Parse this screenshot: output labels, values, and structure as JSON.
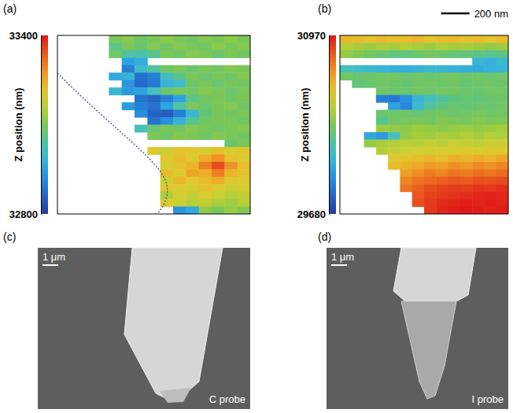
{
  "chart_data": [
    {
      "type": "heatmap",
      "title": "(a)",
      "tick_labels": false,
      "colorbar": {
        "label": "Z position (nm)",
        "range": [
          32800,
          33400
        ],
        "ticks": [
          32800,
          33400
        ]
      },
      "cells": [
        [
          null,
          null,
          null,
          null,
          33100,
          33110,
          33090,
          33100,
          33120,
          33100,
          33090,
          33110,
          33100,
          33120,
          33100
        ],
        [
          null,
          null,
          null,
          null,
          33060,
          33100,
          33080,
          33110,
          33090,
          33110,
          33100,
          33090,
          33120,
          33100,
          33110
        ],
        [
          null,
          null,
          null,
          null,
          33090,
          33040,
          33030,
          33050,
          33100,
          33090,
          33110,
          33100,
          33080,
          33100,
          33090
        ],
        [
          null,
          null,
          null,
          null,
          null,
          32950,
          32970,
          null,
          null,
          null,
          null,
          null,
          null,
          null,
          null
        ],
        [
          null,
          null,
          null,
          null,
          null,
          32900,
          33000,
          33040,
          33090,
          33100,
          33080,
          33100,
          33090,
          33110,
          33100
        ],
        [
          null,
          null,
          null,
          null,
          32960,
          32980,
          32880,
          32900,
          33010,
          33060,
          33100,
          33080,
          33100,
          33090,
          33110
        ],
        [
          null,
          null,
          null,
          null,
          null,
          32930,
          32870,
          32890,
          32980,
          33000,
          33090,
          33100,
          33080,
          33100,
          33090
        ],
        [
          null,
          null,
          null,
          null,
          32990,
          32940,
          32950,
          33020,
          33080,
          33100,
          33090,
          33110,
          33100,
          33080,
          33100
        ],
        [
          null,
          null,
          null,
          null,
          null,
          null,
          32880,
          32860,
          32900,
          32950,
          33060,
          33090,
          33100,
          33090,
          33100
        ],
        [
          null,
          null,
          null,
          null,
          null,
          32940,
          32900,
          32880,
          32950,
          33040,
          33100,
          33080,
          33100,
          33110,
          33090
        ],
        [
          null,
          null,
          null,
          null,
          null,
          null,
          32920,
          32860,
          32850,
          32900,
          32990,
          33070,
          33100,
          33090,
          33100
        ],
        [
          null,
          null,
          null,
          null,
          null,
          null,
          null,
          32880,
          32920,
          32980,
          33050,
          33090,
          33100,
          33100,
          33090
        ],
        [
          null,
          null,
          null,
          null,
          null,
          null,
          33020,
          33080,
          33100,
          33090,
          33110,
          33100,
          33090,
          33100,
          33110
        ],
        [
          null,
          null,
          null,
          null,
          null,
          null,
          null,
          33100,
          33090,
          33110,
          33100,
          33090,
          33110,
          33100,
          33090
        ],
        [
          null,
          null,
          null,
          null,
          null,
          null,
          null,
          null,
          null,
          null,
          null,
          null,
          null,
          33080,
          33100
        ],
        [
          null,
          null,
          null,
          null,
          null,
          null,
          null,
          33200,
          33180,
          33220,
          33210,
          33190,
          33230,
          33200,
          33210
        ],
        [
          null,
          null,
          null,
          null,
          null,
          null,
          null,
          null,
          33210,
          33230,
          33200,
          33250,
          33280,
          33220,
          33200
        ],
        [
          null,
          null,
          null,
          null,
          null,
          null,
          null,
          null,
          33190,
          33220,
          33240,
          33300,
          33350,
          33280,
          33230
        ],
        [
          null,
          null,
          null,
          null,
          null,
          null,
          null,
          null,
          33230,
          33200,
          33260,
          33250,
          33300,
          33240,
          33220
        ],
        [
          null,
          null,
          null,
          null,
          null,
          null,
          null,
          null,
          33180,
          33240,
          33210,
          33230,
          33250,
          33210,
          33200
        ],
        [
          null,
          null,
          null,
          null,
          null,
          null,
          null,
          null,
          33210,
          33200,
          33190,
          33220,
          33200,
          33180,
          33190
        ],
        [
          null,
          null,
          null,
          null,
          null,
          null,
          null,
          null,
          33150,
          33190,
          33170,
          33200,
          33180,
          33160,
          33170
        ],
        [
          null,
          null,
          null,
          null,
          null,
          null,
          null,
          null,
          33200,
          33180,
          33160,
          33170,
          33150,
          33140,
          33160
        ],
        [
          null,
          null,
          null,
          null,
          null,
          null,
          null,
          null,
          null,
          32930,
          32960,
          33120,
          33100,
          33130,
          33110
        ]
      ]
    },
    {
      "type": "heatmap",
      "title": "(b)",
      "tick_labels": false,
      "annotations": [
        "200 nm"
      ],
      "colorbar": {
        "label": "Z position (nm)",
        "range": [
          29680,
          30970
        ],
        "ticks": [
          29680,
          30970
        ]
      },
      "cells": [
        [
          30620,
          30600,
          30580,
          30610,
          30590,
          30600,
          30620,
          30580,
          30600,
          30610,
          30590,
          30600,
          30580,
          30600
        ],
        [
          30450,
          30420,
          30400,
          30430,
          30410,
          30440,
          30420,
          30400,
          30430,
          30410,
          30420,
          30400,
          30380,
          30400
        ],
        [
          30380,
          30340,
          30300,
          30280,
          30250,
          30260,
          30280,
          30300,
          30290,
          30270,
          30260,
          30240,
          30230,
          30250
        ],
        [
          null,
          null,
          null,
          null,
          null,
          null,
          null,
          null,
          null,
          null,
          null,
          30080,
          30060,
          30100
        ],
        [
          30150,
          30130,
          30100,
          30080,
          30060,
          30050,
          30070,
          30090,
          30080,
          30060,
          30050,
          30040,
          30060,
          30080
        ],
        [
          30300,
          30280,
          30290,
          30300,
          30310,
          30290,
          30300,
          30280,
          30300,
          30310,
          30290,
          30300,
          30280,
          30300
        ],
        [
          null,
          30260,
          30280,
          30300,
          30290,
          30270,
          30300,
          30310,
          30290,
          30300,
          30280,
          30290,
          30300,
          30290
        ],
        [
          null,
          null,
          null,
          30300,
          30290,
          30280,
          30300,
          30290,
          30310,
          30300,
          30290,
          30280,
          30300,
          30310
        ],
        [
          null,
          null,
          null,
          29900,
          29880,
          29950,
          30080,
          30150,
          30200,
          30250,
          30270,
          30260,
          30280,
          30290
        ],
        [
          null,
          null,
          null,
          null,
          30000,
          29920,
          30100,
          30200,
          30250,
          30280,
          30270,
          30290,
          30280,
          30300
        ],
        [
          null,
          null,
          null,
          30280,
          30300,
          30290,
          30270,
          30300,
          30310,
          30290,
          30300,
          30320,
          30300,
          30310
        ],
        [
          null,
          null,
          null,
          30220,
          30300,
          30320,
          30330,
          30310,
          30340,
          30330,
          30320,
          30350,
          30330,
          30340
        ],
        [
          null,
          null,
          null,
          30400,
          30380,
          30370,
          30400,
          30380,
          30360,
          30390,
          30400,
          30380,
          30400,
          30420
        ],
        [
          null,
          null,
          30020,
          29980,
          30150,
          30380,
          30420,
          30400,
          30430,
          30410,
          30440,
          30420,
          30450,
          30430
        ],
        [
          null,
          null,
          30380,
          30420,
          30440,
          30460,
          30450,
          30480,
          30460,
          30500,
          30480,
          30470,
          30500,
          30490
        ],
        [
          null,
          null,
          null,
          30450,
          30480,
          30500,
          30520,
          30510,
          30540,
          30530,
          30550,
          30540,
          30560,
          30550
        ],
        [
          null,
          null,
          null,
          null,
          30550,
          30580,
          30600,
          30620,
          30600,
          30640,
          30620,
          30650,
          30630,
          30660
        ],
        [
          null,
          null,
          null,
          null,
          30600,
          30640,
          30660,
          30700,
          30680,
          30720,
          30700,
          30730,
          30710,
          30740
        ],
        [
          null,
          null,
          null,
          null,
          null,
          30680,
          30720,
          30760,
          30740,
          30780,
          30760,
          30790,
          30770,
          30800
        ],
        [
          null,
          null,
          null,
          null,
          null,
          30740,
          30780,
          30800,
          30820,
          30840,
          30830,
          30860,
          30850,
          30870
        ],
        [
          null,
          null,
          null,
          null,
          null,
          30780,
          30820,
          30860,
          30880,
          30900,
          30890,
          30910,
          30900,
          30920
        ],
        [
          null,
          null,
          null,
          null,
          null,
          null,
          30840,
          30880,
          30900,
          30920,
          30930,
          30940,
          30950,
          30940
        ],
        [
          null,
          null,
          null,
          null,
          null,
          null,
          30860,
          30900,
          30930,
          30950,
          30960,
          30950,
          30960,
          30950
        ],
        [
          null,
          null,
          null,
          null,
          null,
          null,
          null,
          30900,
          30940,
          30960,
          30970,
          30960,
          30950,
          30960
        ]
      ]
    },
    {
      "type": "image",
      "title": "(c)",
      "annotations": [
        "1 μm",
        "C probe"
      ]
    },
    {
      "type": "image",
      "title": "(d)",
      "annotations": [
        "1 μm",
        "I probe"
      ]
    }
  ]
}
